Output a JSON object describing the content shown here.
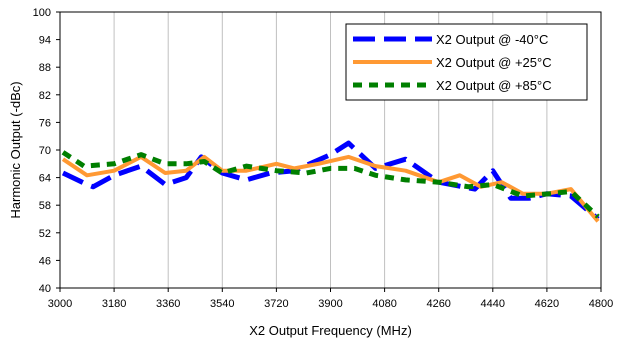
{
  "chart_data": {
    "type": "line",
    "title": "",
    "xlabel": "X2 Output Frequency (MHz)",
    "ylabel": "Harmonic Output (-dBc)",
    "xlim": [
      3000,
      4800
    ],
    "ylim": [
      40,
      100
    ],
    "xticks": [
      3000,
      3180,
      3360,
      3540,
      3720,
      3900,
      4080,
      4260,
      4440,
      4620,
      4800
    ],
    "yticks": [
      40,
      46,
      52,
      58,
      64,
      70,
      76,
      82,
      88,
      94,
      100
    ],
    "xtick_labels": [
      "3000",
      "3180",
      "3360",
      "3540",
      "3720",
      "3900",
      "4080",
      "4260",
      "4440",
      "4620",
      "4800"
    ],
    "ytick_labels": [
      "40",
      "46",
      "52",
      "58",
      "64",
      "70",
      "76",
      "82",
      "88",
      "94",
      "100"
    ],
    "grid": "vertical",
    "legend_position": "top-right",
    "series": [
      {
        "name": "X2 Output @ -40°C",
        "color": "#0000ff",
        "style": "long-dash",
        "x": [
          3010,
          3090,
          3110,
          3180,
          3270,
          3350,
          3420,
          3470,
          3540,
          3620,
          3700,
          3780,
          3900,
          3960,
          4050,
          4150,
          4260,
          4380,
          4440,
          4500,
          4560,
          4620,
          4700,
          4790
        ],
        "y": [
          65,
          62.5,
          62,
          64.5,
          66.5,
          62.5,
          64,
          68.5,
          65,
          63.5,
          65,
          65.5,
          69,
          71.5,
          66,
          68,
          63,
          61.5,
          65.5,
          59.5,
          59.5,
          60.5,
          60,
          55
        ]
      },
      {
        "name": "X2 Output @ +25°C",
        "color": "#ff9933",
        "style": "solid",
        "x": [
          3010,
          3090,
          3180,
          3270,
          3350,
          3420,
          3480,
          3540,
          3620,
          3720,
          3780,
          3860,
          3960,
          4050,
          4150,
          4260,
          4330,
          4400,
          4470,
          4540,
          4620,
          4700,
          4790
        ],
        "y": [
          68,
          64.5,
          65.5,
          68.5,
          65,
          65.5,
          68.5,
          65.5,
          65.5,
          67,
          66,
          67,
          68.5,
          66.5,
          65.5,
          63,
          64.5,
          62,
          63,
          60.5,
          60.5,
          61.5,
          54.5
        ]
      },
      {
        "name": "X2 Output @ +85°C",
        "color": "#007f00",
        "style": "short-dash",
        "x": [
          3010,
          3080,
          3180,
          3270,
          3350,
          3420,
          3480,
          3540,
          3620,
          3720,
          3820,
          3900,
          3980,
          4050,
          4150,
          4260,
          4360,
          4440,
          4540,
          4630,
          4700,
          4790
        ],
        "y": [
          69.5,
          66.5,
          67,
          69,
          67,
          67,
          67.5,
          65,
          66.5,
          65.5,
          65,
          66,
          66,
          64.5,
          63.5,
          63,
          62,
          62.5,
          60,
          60.5,
          61,
          55.5
        ]
      }
    ]
  }
}
